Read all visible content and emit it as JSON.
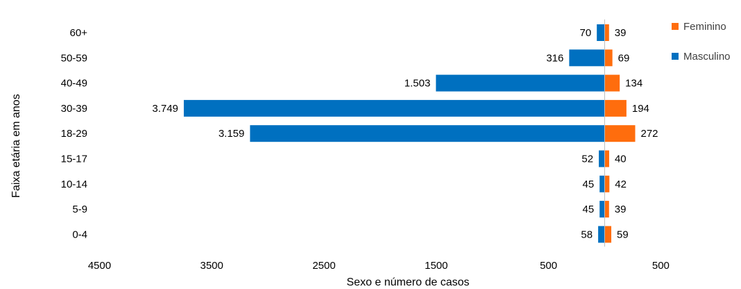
{
  "chart_data": {
    "type": "bar",
    "orientation": "horizontal",
    "layout": "population-pyramid",
    "categories": [
      "60+",
      "50-59",
      "40-49",
      "30-39",
      "18-29",
      "15-17",
      "10-14",
      "5-9",
      "0-4"
    ],
    "series": [
      {
        "name": "Feminino",
        "color": "#FF6D0D",
        "values": [
          39,
          69,
          134,
          194,
          272,
          40,
          42,
          39,
          59
        ],
        "value_labels": [
          "39",
          "69",
          "134",
          "194",
          "272",
          "40",
          "42",
          "39",
          "59"
        ]
      },
      {
        "name": "Masculino",
        "color": "#0070C0",
        "values": [
          70,
          316,
          1503,
          3749,
          3159,
          52,
          45,
          45,
          58
        ],
        "value_labels": [
          "70",
          "316",
          "1.503",
          "3.749",
          "3.159",
          "52",
          "45",
          "45",
          "58"
        ]
      }
    ],
    "x_ticks": [
      "4500",
      "3500",
      "2500",
      "1500",
      "500",
      "500"
    ],
    "x_tick_values": [
      -4500,
      -3500,
      -2500,
      -1500,
      -500,
      500
    ],
    "xlim": [
      -4500,
      500
    ],
    "xlabel": "Sexo e número de casos",
    "ylabel": "Faixa etária em anos",
    "legend_position": "top-right",
    "grid": false
  }
}
